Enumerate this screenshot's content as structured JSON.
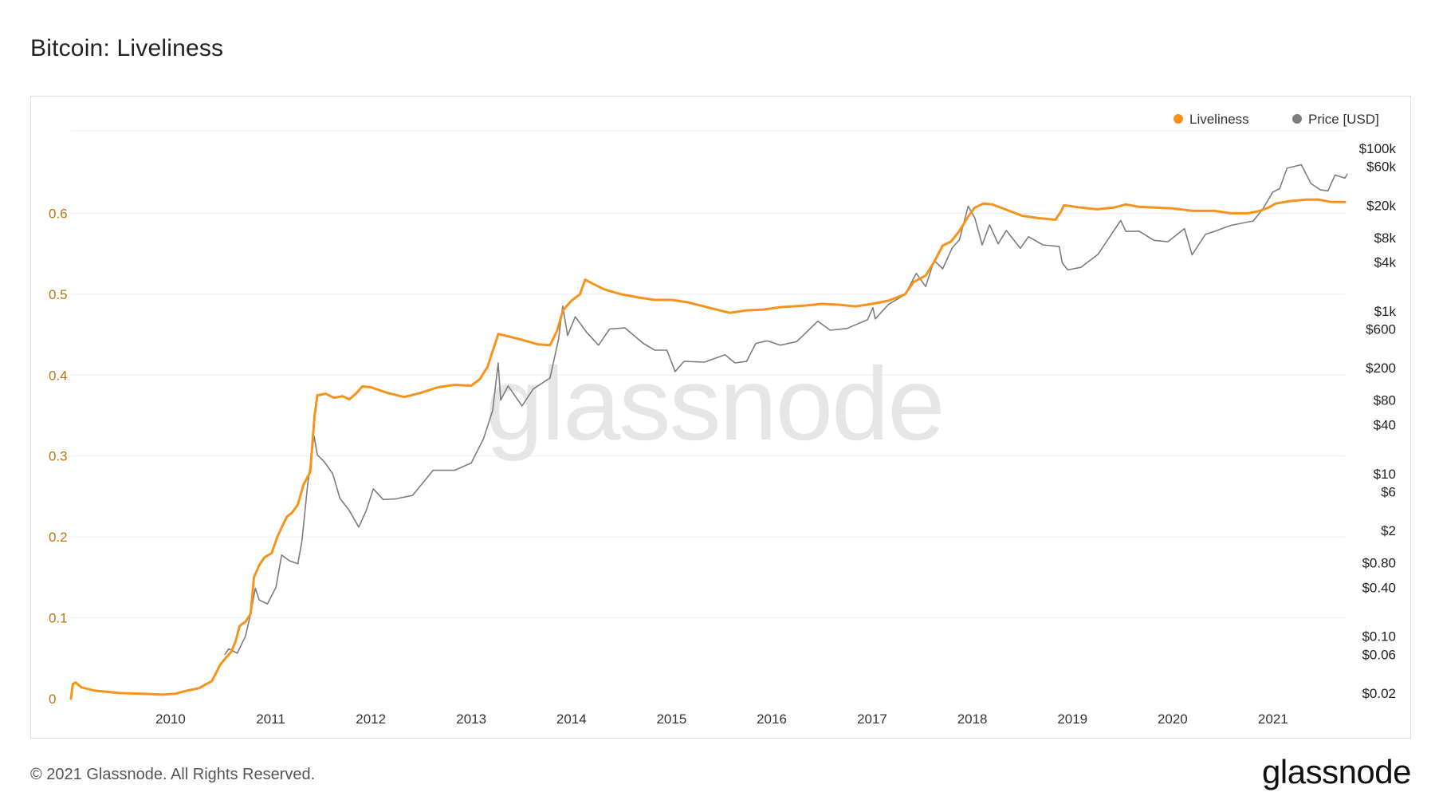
{
  "header": {
    "title": "Bitcoin: Liveliness"
  },
  "footer": {
    "copyright": "© 2021 Glassnode. All Rights Reserved.",
    "brand": "glassnode"
  },
  "watermark": "glassnode",
  "colors": {
    "liveliness": "#f7931a",
    "price": "#7d7d7d",
    "grid": "#ececec",
    "left_axis": "#b8760f"
  },
  "chart_data": {
    "type": "line",
    "title": "Bitcoin: Liveliness",
    "legend": {
      "placement": "top-right",
      "entries": [
        "Liveliness",
        "Price [USD]"
      ]
    },
    "grid": true,
    "x_range": [
      "2009-01-03",
      "2021-09-20"
    ],
    "x_ticks": [
      "2010",
      "2011",
      "2012",
      "2013",
      "2014",
      "2015",
      "2016",
      "2017",
      "2018",
      "2019",
      "2020",
      "2021"
    ],
    "y_left": {
      "label": "",
      "range": [
        0,
        0.7
      ],
      "ticks": [
        "0",
        "0.1",
        "0.2",
        "0.3",
        "0.4",
        "0.5",
        "0.6"
      ]
    },
    "y_right": {
      "label": "",
      "scale": "log",
      "range": [
        0.02,
        100000
      ],
      "ticks": [
        {
          "value": 100000,
          "label": "$100k"
        },
        {
          "value": 60000,
          "label": "$60k"
        },
        {
          "value": 20000,
          "label": "$20k"
        },
        {
          "value": 8000,
          "label": "$8k"
        },
        {
          "value": 4000,
          "label": "$4k"
        },
        {
          "value": 1000,
          "label": "$1k"
        },
        {
          "value": 600,
          "label": "$600"
        },
        {
          "value": 200,
          "label": "$200"
        },
        {
          "value": 80,
          "label": "$80"
        },
        {
          "value": 40,
          "label": "$40"
        },
        {
          "value": 10,
          "label": "$10"
        },
        {
          "value": 6,
          "label": "$6"
        },
        {
          "value": 2,
          "label": "$2"
        },
        {
          "value": 0.8,
          "label": "$0.80"
        },
        {
          "value": 0.4,
          "label": "$0.40"
        },
        {
          "value": 0.1,
          "label": "$0.10"
        },
        {
          "value": 0.06,
          "label": "$0.06"
        },
        {
          "value": 0.02,
          "label": "$0.02"
        }
      ]
    },
    "series": [
      {
        "name": "Liveliness",
        "axis": "left",
        "points": [
          [
            "2009-01-03",
            0.0
          ],
          [
            "2009-01-10",
            0.018
          ],
          [
            "2009-01-20",
            0.02
          ],
          [
            "2009-02-10",
            0.014
          ],
          [
            "2009-04-01",
            0.01
          ],
          [
            "2009-07-01",
            0.007
          ],
          [
            "2009-10-01",
            0.006
          ],
          [
            "2009-12-01",
            0.005
          ],
          [
            "2010-01-15",
            0.006
          ],
          [
            "2010-03-01",
            0.01
          ],
          [
            "2010-04-15",
            0.013
          ],
          [
            "2010-06-01",
            0.022
          ],
          [
            "2010-07-01",
            0.042
          ],
          [
            "2010-07-20",
            0.05
          ],
          [
            "2010-08-10",
            0.058
          ],
          [
            "2010-08-25",
            0.07
          ],
          [
            "2010-09-10",
            0.09
          ],
          [
            "2010-10-01",
            0.095
          ],
          [
            "2010-10-20",
            0.105
          ],
          [
            "2010-11-01",
            0.15
          ],
          [
            "2010-11-20",
            0.165
          ],
          [
            "2010-12-10",
            0.175
          ],
          [
            "2011-01-05",
            0.18
          ],
          [
            "2011-01-25",
            0.2
          ],
          [
            "2011-02-15",
            0.215
          ],
          [
            "2011-03-01",
            0.225
          ],
          [
            "2011-03-20",
            0.23
          ],
          [
            "2011-04-10",
            0.24
          ],
          [
            "2011-05-01",
            0.265
          ],
          [
            "2011-05-25",
            0.28
          ],
          [
            "2011-06-10",
            0.35
          ],
          [
            "2011-06-20",
            0.375
          ],
          [
            "2011-07-20",
            0.377
          ],
          [
            "2011-08-20",
            0.372
          ],
          [
            "2011-09-20",
            0.374
          ],
          [
            "2011-10-15",
            0.37
          ],
          [
            "2011-11-10",
            0.378
          ],
          [
            "2011-12-01",
            0.386
          ],
          [
            "2012-01-01",
            0.385
          ],
          [
            "2012-03-01",
            0.378
          ],
          [
            "2012-05-01",
            0.373
          ],
          [
            "2012-07-01",
            0.378
          ],
          [
            "2012-09-01",
            0.385
          ],
          [
            "2012-11-01",
            0.388
          ],
          [
            "2013-01-01",
            0.387
          ],
          [
            "2013-02-01",
            0.395
          ],
          [
            "2013-03-01",
            0.41
          ],
          [
            "2013-03-20",
            0.43
          ],
          [
            "2013-04-10",
            0.451
          ],
          [
            "2013-05-15",
            0.448
          ],
          [
            "2013-07-01",
            0.444
          ],
          [
            "2013-09-01",
            0.438
          ],
          [
            "2013-10-15",
            0.437
          ],
          [
            "2013-11-10",
            0.455
          ],
          [
            "2013-12-01",
            0.48
          ],
          [
            "2014-01-01",
            0.492
          ],
          [
            "2014-02-01",
            0.5
          ],
          [
            "2014-02-20",
            0.518
          ],
          [
            "2014-03-20",
            0.513
          ],
          [
            "2014-05-01",
            0.506
          ],
          [
            "2014-07-01",
            0.5
          ],
          [
            "2014-09-01",
            0.496
          ],
          [
            "2014-11-01",
            0.493
          ],
          [
            "2015-01-01",
            0.493
          ],
          [
            "2015-03-01",
            0.49
          ],
          [
            "2015-06-01",
            0.482
          ],
          [
            "2015-08-01",
            0.477
          ],
          [
            "2015-10-01",
            0.48
          ],
          [
            "2015-12-01",
            0.481
          ],
          [
            "2016-02-01",
            0.484
          ],
          [
            "2016-05-01",
            0.486
          ],
          [
            "2016-07-01",
            0.488
          ],
          [
            "2016-09-01",
            0.487
          ],
          [
            "2016-11-01",
            0.485
          ],
          [
            "2017-01-01",
            0.488
          ],
          [
            "2017-03-01",
            0.492
          ],
          [
            "2017-05-01",
            0.5
          ],
          [
            "2017-06-01",
            0.515
          ],
          [
            "2017-07-15",
            0.523
          ],
          [
            "2017-08-15",
            0.54
          ],
          [
            "2017-09-15",
            0.56
          ],
          [
            "2017-10-15",
            0.565
          ],
          [
            "2017-11-15",
            0.578
          ],
          [
            "2017-12-15",
            0.595
          ],
          [
            "2018-01-10",
            0.607
          ],
          [
            "2018-02-10",
            0.612
          ],
          [
            "2018-03-15",
            0.611
          ],
          [
            "2018-05-01",
            0.605
          ],
          [
            "2018-07-01",
            0.597
          ],
          [
            "2018-09-01",
            0.594
          ],
          [
            "2018-10-31",
            0.592
          ],
          [
            "2018-11-20",
            0.602
          ],
          [
            "2018-12-01",
            0.61
          ],
          [
            "2019-02-01",
            0.607
          ],
          [
            "2019-04-01",
            0.605
          ],
          [
            "2019-06-01",
            0.607
          ],
          [
            "2019-07-15",
            0.611
          ],
          [
            "2019-09-01",
            0.608
          ],
          [
            "2019-11-01",
            0.607
          ],
          [
            "2020-01-01",
            0.606
          ],
          [
            "2020-03-15",
            0.603
          ],
          [
            "2020-06-01",
            0.603
          ],
          [
            "2020-08-01",
            0.6
          ],
          [
            "2020-10-01",
            0.6
          ],
          [
            "2020-11-15",
            0.603
          ],
          [
            "2020-12-15",
            0.607
          ],
          [
            "2021-01-10",
            0.612
          ],
          [
            "2021-03-01",
            0.615
          ],
          [
            "2021-05-01",
            0.617
          ],
          [
            "2021-06-15",
            0.617
          ],
          [
            "2021-08-01",
            0.614
          ],
          [
            "2021-09-20",
            0.614
          ]
        ]
      },
      {
        "name": "Price [USD]",
        "axis": "right",
        "points": [
          [
            "2010-07-18",
            0.06
          ],
          [
            "2010-08-01",
            0.07
          ],
          [
            "2010-09-01",
            0.062
          ],
          [
            "2010-10-01",
            0.1
          ],
          [
            "2010-10-20",
            0.19
          ],
          [
            "2010-11-06",
            0.39
          ],
          [
            "2010-11-20",
            0.28
          ],
          [
            "2010-12-20",
            0.25
          ],
          [
            "2011-01-20",
            0.4
          ],
          [
            "2011-02-10",
            1.0
          ],
          [
            "2011-03-10",
            0.85
          ],
          [
            "2011-04-10",
            0.78
          ],
          [
            "2011-04-25",
            1.5
          ],
          [
            "2011-05-15",
            7.0
          ],
          [
            "2011-06-08",
            29.0
          ],
          [
            "2011-06-20",
            17.0
          ],
          [
            "2011-07-15",
            14.0
          ],
          [
            "2011-08-15",
            10.0
          ],
          [
            "2011-09-10",
            5.0
          ],
          [
            "2011-10-15",
            3.5
          ],
          [
            "2011-11-18",
            2.2
          ],
          [
            "2011-12-15",
            3.5
          ],
          [
            "2012-01-10",
            6.5
          ],
          [
            "2012-02-15",
            4.8
          ],
          [
            "2012-04-01",
            4.9
          ],
          [
            "2012-06-01",
            5.4
          ],
          [
            "2012-08-15",
            11.0
          ],
          [
            "2012-09-15",
            11.0
          ],
          [
            "2012-11-01",
            11.0
          ],
          [
            "2013-01-01",
            13.5
          ],
          [
            "2013-02-15",
            27.0
          ],
          [
            "2013-03-20",
            60.0
          ],
          [
            "2013-04-09",
            230.0
          ],
          [
            "2013-04-18",
            80.0
          ],
          [
            "2013-05-15",
            120.0
          ],
          [
            "2013-07-05",
            68.0
          ],
          [
            "2013-08-15",
            110.0
          ],
          [
            "2013-10-15",
            150.0
          ],
          [
            "2013-11-15",
            450.0
          ],
          [
            "2013-11-30",
            1150.0
          ],
          [
            "2013-12-18",
            500.0
          ],
          [
            "2014-01-15",
            850.0
          ],
          [
            "2014-02-25",
            550.0
          ],
          [
            "2014-04-10",
            380.0
          ],
          [
            "2014-05-20",
            600.0
          ],
          [
            "2014-07-15",
            620.0
          ],
          [
            "2014-09-20",
            400.0
          ],
          [
            "2014-11-01",
            330.0
          ],
          [
            "2014-12-15",
            330.0
          ],
          [
            "2015-01-14",
            180.0
          ],
          [
            "2015-02-15",
            240.0
          ],
          [
            "2015-05-01",
            235.0
          ],
          [
            "2015-07-15",
            290.0
          ],
          [
            "2015-08-20",
            230.0
          ],
          [
            "2015-10-01",
            240.0
          ],
          [
            "2015-11-04",
            400.0
          ],
          [
            "2015-12-15",
            430.0
          ],
          [
            "2016-02-01",
            380.0
          ],
          [
            "2016-04-01",
            420.0
          ],
          [
            "2016-06-17",
            750.0
          ],
          [
            "2016-08-01",
            580.0
          ],
          [
            "2016-10-01",
            610.0
          ],
          [
            "2016-12-15",
            780.0
          ],
          [
            "2017-01-04",
            1100.0
          ],
          [
            "2017-01-12",
            800.0
          ],
          [
            "2017-03-01",
            1200.0
          ],
          [
            "2017-05-01",
            1600.0
          ],
          [
            "2017-06-11",
            2900.0
          ],
          [
            "2017-07-15",
            2000.0
          ],
          [
            "2017-08-15",
            4200.0
          ],
          [
            "2017-09-15",
            3300.0
          ],
          [
            "2017-10-20",
            6000.0
          ],
          [
            "2017-11-15",
            7500.0
          ],
          [
            "2017-12-17",
            19500.0
          ],
          [
            "2018-01-10",
            14000.0
          ],
          [
            "2018-02-06",
            6500.0
          ],
          [
            "2018-03-05",
            11500.0
          ],
          [
            "2018-04-05",
            6700.0
          ],
          [
            "2018-05-05",
            9800.0
          ],
          [
            "2018-06-25",
            5900.0
          ],
          [
            "2018-07-25",
            8200.0
          ],
          [
            "2018-09-15",
            6500.0
          ],
          [
            "2018-11-14",
            6200.0
          ],
          [
            "2018-11-25",
            3900.0
          ],
          [
            "2018-12-15",
            3200.0
          ],
          [
            "2019-02-01",
            3450.0
          ],
          [
            "2019-04-05",
            5000.0
          ],
          [
            "2019-05-15",
            8000.0
          ],
          [
            "2019-06-26",
            13000.0
          ],
          [
            "2019-07-15",
            9500.0
          ],
          [
            "2019-09-01",
            9600.0
          ],
          [
            "2019-10-25",
            7400.0
          ],
          [
            "2019-12-15",
            7100.0
          ],
          [
            "2020-02-13",
            10300.0
          ],
          [
            "2020-03-12",
            4900.0
          ],
          [
            "2020-04-30",
            8800.0
          ],
          [
            "2020-06-01",
            9500.0
          ],
          [
            "2020-08-01",
            11300.0
          ],
          [
            "2020-10-21",
            12800.0
          ],
          [
            "2020-11-25",
            18000.0
          ],
          [
            "2020-12-31",
            29000.0
          ],
          [
            "2021-01-25",
            32000.0
          ],
          [
            "2021-02-21",
            57000.0
          ],
          [
            "2021-04-14",
            63000.0
          ],
          [
            "2021-05-19",
            37000.0
          ],
          [
            "2021-06-22",
            31000.0
          ],
          [
            "2021-07-20",
            30000.0
          ],
          [
            "2021-08-15",
            47000.0
          ],
          [
            "2021-09-20",
            43000.0
          ],
          [
            "2021-09-28",
            48000.0
          ]
        ]
      }
    ]
  }
}
